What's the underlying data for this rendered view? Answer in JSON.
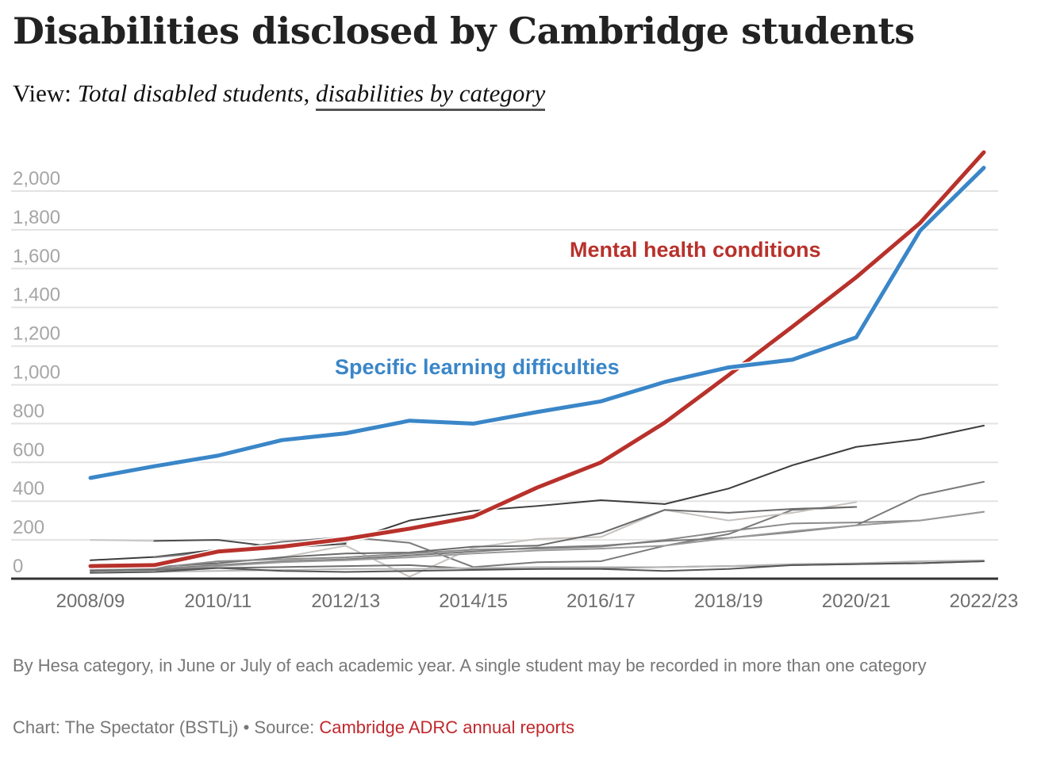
{
  "header": {
    "title": "Disabilities disclosed by Cambridge students",
    "view_prefix": "View:",
    "view_options": [
      {
        "label": "Total disabled students",
        "active": false
      },
      {
        "label": "disabilities by category",
        "active": true
      }
    ],
    "separator": ","
  },
  "footer": {
    "notes": "By Hesa category, in June or July of each academic year. A single student may be recorded in more than one category",
    "credit_prefix": "Chart: The Spectator (BSTLj) • Source: ",
    "source_link": "Cambridge ADRC annual reports"
  },
  "chart_data": {
    "type": "line",
    "title": "Disabilities disclosed by Cambridge students",
    "xlabel": "",
    "ylabel": "",
    "x": [
      "2008/09",
      "2009/10",
      "2010/11",
      "2011/12",
      "2012/13",
      "2013/14",
      "2014/15",
      "2015/16",
      "2016/17",
      "2017/18",
      "2018/19",
      "2019/20",
      "2020/21",
      "2021/22",
      "2022/23"
    ],
    "x_tick_labels": [
      "2008/09",
      "2010/11",
      "2012/13",
      "2014/15",
      "2016/17",
      "2018/19",
      "2020/21",
      "2022/23"
    ],
    "y_ticks": [
      0,
      200,
      400,
      600,
      800,
      1000,
      1200,
      1400,
      1600,
      1800,
      2000
    ],
    "y_tick_labels": [
      "0",
      "200",
      "400",
      "600",
      "800",
      "1,000",
      "1,200",
      "1,400",
      "1,600",
      "1,800",
      "2,000"
    ],
    "ylim": [
      0,
      2200
    ],
    "grid": true,
    "legend": "direct-labels",
    "series": [
      {
        "name": "",
        "color": "#c8c8c8",
        "width": 2,
        "values": [
          200,
          195,
          null,
          null,
          null,
          null,
          null,
          null,
          null,
          null,
          null,
          null,
          null,
          null,
          null
        ]
      },
      {
        "name": "",
        "color": "#3d3d3d",
        "width": 2,
        "values": [
          95,
          112,
          150,
          168,
          190,
          300,
          350,
          375,
          405,
          385,
          465,
          585,
          680,
          720,
          790
        ]
      },
      {
        "name": "",
        "color": "#4a4a4a",
        "width": 2,
        "values": [
          null,
          195,
          200,
          160,
          180,
          null,
          null,
          null,
          null,
          null,
          null,
          null,
          null,
          null,
          null
        ]
      },
      {
        "name": "",
        "color": "#7a7a7a",
        "width": 2,
        "values": [
          null,
          110,
          140,
          190,
          215,
          185,
          60,
          85,
          90,
          170,
          230,
          355,
          370,
          null,
          null
        ]
      },
      {
        "name": "",
        "color": "#c6c2bf",
        "width": 2,
        "values": [
          null,
          60,
          80,
          110,
          170,
          10,
          160,
          205,
          215,
          355,
          300,
          340,
          395,
          null,
          null
        ]
      },
      {
        "name": "",
        "color": "#6a6a6a",
        "width": 2,
        "values": [
          55,
          60,
          80,
          110,
          130,
          135,
          165,
          170,
          235,
          355,
          340,
          360,
          370,
          null,
          null
        ]
      },
      {
        "name": "",
        "color": "#8a8a8a",
        "width": 2,
        "values": [
          45,
          55,
          90,
          100,
          110,
          130,
          150,
          155,
          165,
          200,
          245,
          285,
          290,
          300,
          345
        ]
      },
      {
        "name": "",
        "color": "#7a7a7a",
        "width": 2,
        "values": [
          40,
          50,
          70,
          90,
          100,
          120,
          140,
          160,
          170,
          195,
          210,
          240,
          275,
          430,
          500
        ]
      },
      {
        "name": "",
        "color": "#9a9a9a",
        "width": 2,
        "values": [
          null,
          45,
          65,
          85,
          95,
          110,
          130,
          145,
          155,
          170,
          210,
          245,
          275,
          300,
          345
        ]
      },
      {
        "name": "",
        "color": "#6e6e6e",
        "width": 2,
        "values": [
          40,
          45,
          55,
          60,
          65,
          70,
          50,
          50,
          55,
          60,
          65,
          70,
          75,
          80,
          90
        ]
      },
      {
        "name": "",
        "color": "#b8b8b8",
        "width": 2,
        "values": [
          30,
          35,
          40,
          45,
          50,
          50,
          55,
          60,
          60,
          60,
          65,
          75,
          80,
          90,
          95
        ]
      },
      {
        "name": "",
        "color": "#555555",
        "width": 2,
        "values": [
          30,
          35,
          55,
          40,
          35,
          40,
          45,
          50,
          50,
          40,
          50,
          70,
          75,
          80,
          90
        ]
      },
      {
        "name": "Mental health conditions",
        "color": "#b8312b",
        "width": 5,
        "values": [
          65,
          70,
          140,
          165,
          205,
          258,
          320,
          470,
          600,
          805,
          1050,
          1300,
          1555,
          1835,
          2200
        ]
      },
      {
        "name": "Specific learning difficulties",
        "color": "#3a86c8",
        "width": 5,
        "values": [
          520,
          580,
          635,
          715,
          750,
          815,
          800,
          860,
          915,
          1015,
          1090,
          1130,
          1245,
          1795,
          2120
        ]
      }
    ],
    "annotations": [
      {
        "text": "Mental health conditions",
        "series": "Mental health conditions",
        "color": "#b8312b"
      },
      {
        "text": "Specific learning difficulties",
        "series": "Specific learning difficulties",
        "color": "#3a86c8"
      }
    ]
  }
}
